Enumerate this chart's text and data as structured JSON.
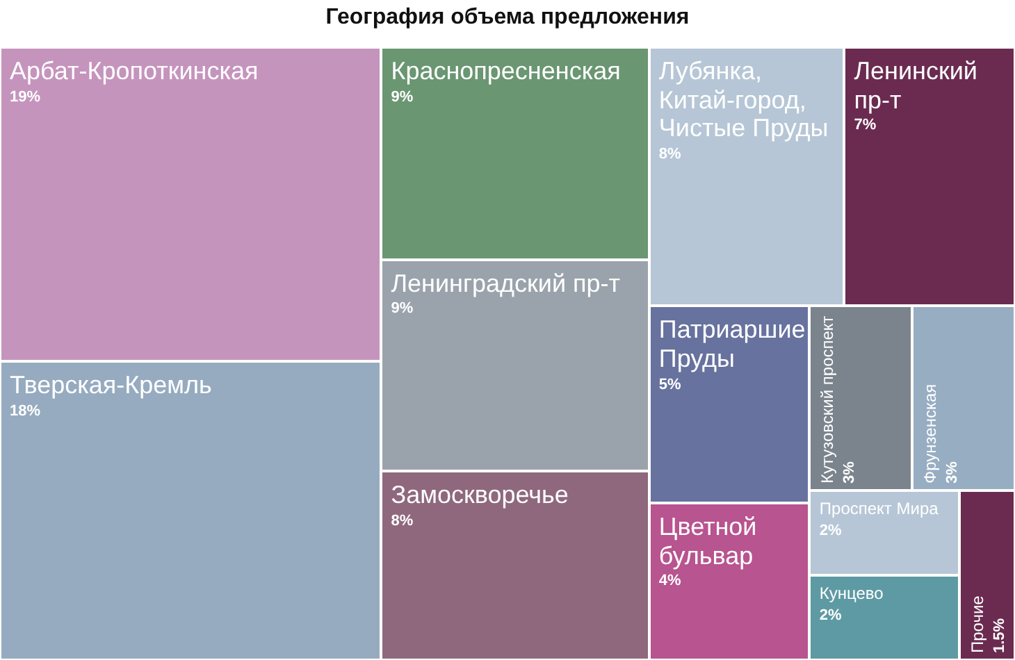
{
  "chart_data": {
    "type": "other",
    "title": "География объема предложения",
    "categories": [
      "Арбат-Кропоткинская",
      "Тверская-Кремль",
      "Краснопресненская",
      "Ленинградский пр-т",
      "Замоскворечье",
      "Лубянка, Китай-город, Чистые Пруды",
      "Ленинский пр-т",
      "Патриаршие Пруды",
      "Цветной бульвар",
      "Кутузовский проспект",
      "Фрунзенская",
      "Проспект Мира",
      "Кунцево",
      "Прочие"
    ],
    "values": [
      19,
      18,
      9,
      9,
      8,
      8,
      7,
      5,
      4,
      3,
      3,
      2,
      2,
      1.5
    ],
    "value_labels": [
      "19%",
      "18%",
      "9%",
      "9%",
      "8%",
      "8%",
      "7%",
      "5%",
      "4%",
      "3%",
      "3%",
      "2%",
      "2%",
      "1.5%"
    ],
    "colors": [
      "#c594bd",
      "#96abc0",
      "#6a9672",
      "#9aa3ab",
      "#8f687e",
      "#b6c6d6",
      "#6b2b50",
      "#67729e",
      "#b8548f",
      "#7b848d",
      "#97adc2",
      "#b6c6d6",
      "#5e9aa3",
      "#6b2b50"
    ]
  }
}
